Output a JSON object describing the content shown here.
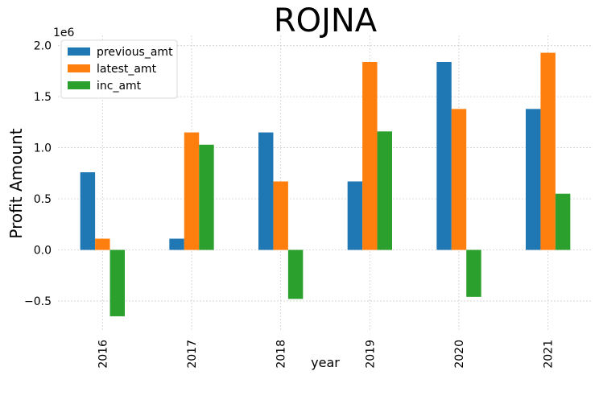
{
  "chart_data": {
    "type": "bar",
    "title": "ROJNA",
    "xlabel": "year",
    "ylabel": "Profit Amount",
    "y_multiplier_label": "1e6",
    "categories": [
      "2016",
      "2017",
      "2018",
      "2019",
      "2020",
      "2021"
    ],
    "series": [
      {
        "name": "previous_amt",
        "color": "#1f77b4",
        "values": [
          0.76,
          0.11,
          1.15,
          0.67,
          1.84,
          1.38
        ]
      },
      {
        "name": "latest_amt",
        "color": "#ff7f0e",
        "values": [
          0.11,
          1.15,
          0.67,
          1.84,
          1.38,
          1.93
        ]
      },
      {
        "name": "inc_amt",
        "color": "#2ca02c",
        "values": [
          -0.65,
          1.03,
          -0.48,
          1.16,
          -0.46,
          0.55
        ]
      }
    ],
    "ylim": [
      -0.8,
      2.1
    ],
    "yticks": [
      -0.5,
      0.0,
      0.5,
      1.0,
      1.5,
      2.0
    ],
    "ytick_labels": [
      "−0.5",
      "0.0",
      "0.5",
      "1.0",
      "1.5",
      "2.0"
    ],
    "grid": true,
    "legend_position": "top-left"
  }
}
